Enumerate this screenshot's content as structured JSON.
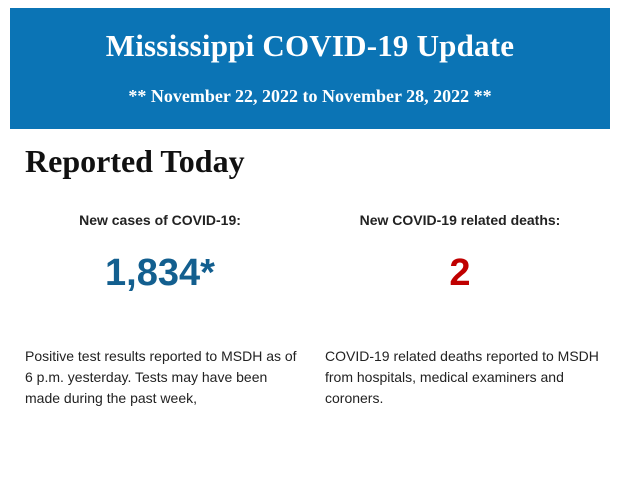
{
  "banner": {
    "title": "Mississippi COVID-19 Update",
    "subtitle": "** November 22, 2022 to November 28, 2022 **",
    "background_color": "#0b74b5"
  },
  "section": {
    "title": "Reported Today"
  },
  "cases": {
    "label": "New cases of COVID-19:",
    "value": "1,834*",
    "value_color": "#135f8f",
    "description": "Positive test results reported to MSDH as of 6 p.m. yesterday. Tests may have been made during the past week,"
  },
  "deaths": {
    "label": "New COVID-19 related deaths:",
    "value": "2",
    "value_color": "#c00000",
    "description": "COVID-19 related deaths reported to MSDH from hospitals, medical examiners and coroners."
  }
}
